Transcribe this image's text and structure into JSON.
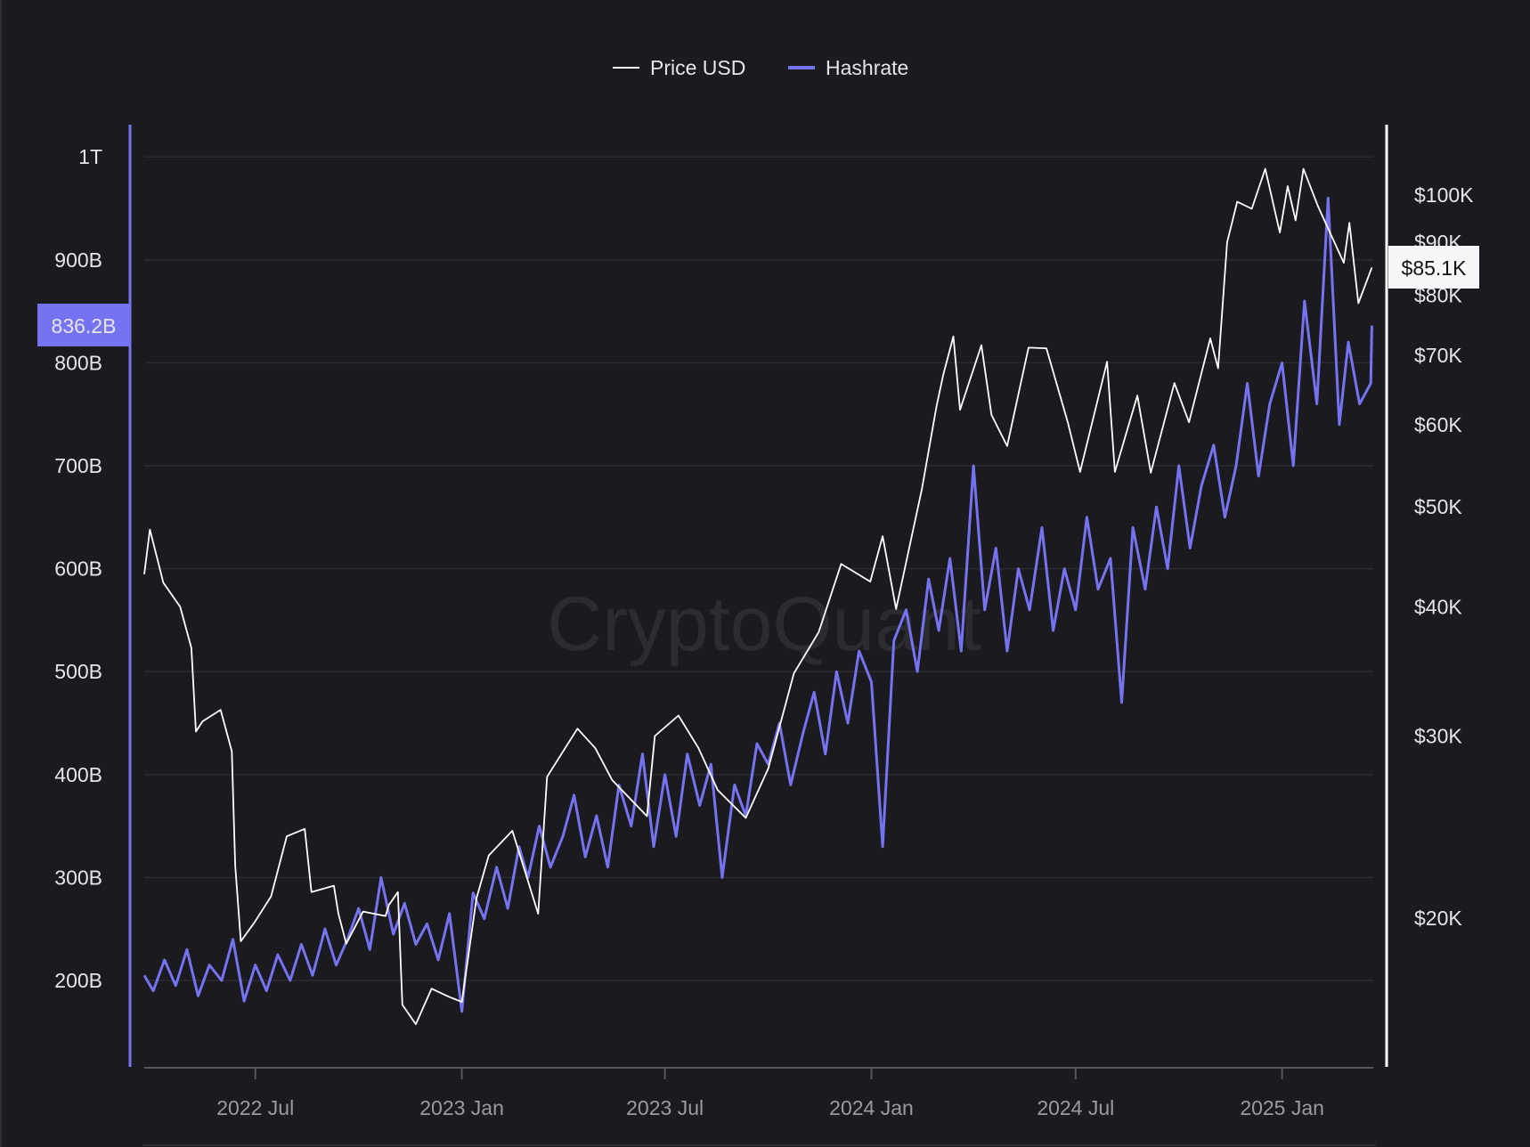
{
  "chart_data": {
    "type": "line",
    "title": "",
    "watermark": "CryptoQuant",
    "legend": {
      "placement": "top-center",
      "entries": [
        "Price USD",
        "Hashrate"
      ]
    },
    "grid": true,
    "colors": {
      "background": "#1b1a1f",
      "grid": "#2a2a30",
      "price": "#ffffff",
      "hashrate": "#7673f3",
      "text": "#e6e6ea"
    },
    "x_axis": {
      "type": "date",
      "range": [
        "2022-03-24",
        "2025-03-22"
      ],
      "ticks": [
        {
          "date": "2022-07-01",
          "label": "2022 Jul"
        },
        {
          "date": "2023-01-01",
          "label": "2023 Jan"
        },
        {
          "date": "2023-07-01",
          "label": "2023 Jul"
        },
        {
          "date": "2024-01-01",
          "label": "2024 Jan"
        },
        {
          "date": "2024-07-01",
          "label": "2024 Jul"
        },
        {
          "date": "2025-01-01",
          "label": "2025 Jan"
        }
      ]
    },
    "left_axis": {
      "series": "Hashrate",
      "scale": "linear",
      "ticks": [
        {
          "value": 200,
          "label": "200B"
        },
        {
          "value": 300,
          "label": "300B"
        },
        {
          "value": 400,
          "label": "400B"
        },
        {
          "value": 500,
          "label": "500B"
        },
        {
          "value": 600,
          "label": "600B"
        },
        {
          "value": 700,
          "label": "700B"
        },
        {
          "value": 800,
          "label": "800B"
        },
        {
          "value": 900,
          "label": "900B"
        },
        {
          "value": 1000,
          "label": "1T"
        }
      ],
      "current_value": 836.2,
      "current_label": "836.2B"
    },
    "right_axis": {
      "series": "Price USD",
      "scale": "log",
      "ticks": [
        {
          "value": 20000,
          "label": "$20K"
        },
        {
          "value": 30000,
          "label": "$30K"
        },
        {
          "value": 40000,
          "label": "$40K"
        },
        {
          "value": 50000,
          "label": "$50K"
        },
        {
          "value": 60000,
          "label": "$60K"
        },
        {
          "value": 70000,
          "label": "$70K"
        },
        {
          "value": 80000,
          "label": "$80K"
        },
        {
          "value": 90000,
          "label": "$90K"
        },
        {
          "value": 100000,
          "label": "$100K"
        }
      ],
      "current_value": 85100,
      "current_label": "$85.1K"
    },
    "series": [
      {
        "name": "Price USD",
        "axis": "right",
        "points": [
          [
            "2022-03-24",
            43000
          ],
          [
            "2022-03-29",
            47500
          ],
          [
            "2022-04-10",
            42200
          ],
          [
            "2022-04-25",
            40000
          ],
          [
            "2022-05-05",
            36500
          ],
          [
            "2022-05-09",
            30300
          ],
          [
            "2022-05-15",
            31000
          ],
          [
            "2022-05-31",
            31800
          ],
          [
            "2022-06-10",
            29000
          ],
          [
            "2022-06-13",
            22500
          ],
          [
            "2022-06-18",
            19000
          ],
          [
            "2022-06-30",
            19800
          ],
          [
            "2022-07-15",
            21000
          ],
          [
            "2022-07-29",
            24000
          ],
          [
            "2022-08-14",
            24400
          ],
          [
            "2022-08-20",
            21200
          ],
          [
            "2022-09-09",
            21500
          ],
          [
            "2022-09-13",
            20200
          ],
          [
            "2022-09-20",
            18900
          ],
          [
            "2022-10-05",
            20300
          ],
          [
            "2022-10-25",
            20100
          ],
          [
            "2022-10-28",
            20600
          ],
          [
            "2022-11-05",
            21200
          ],
          [
            "2022-11-09",
            16500
          ],
          [
            "2022-11-21",
            15800
          ],
          [
            "2022-12-05",
            17100
          ],
          [
            "2022-12-20",
            16800
          ],
          [
            "2023-01-01",
            16600
          ],
          [
            "2023-01-14",
            20900
          ],
          [
            "2023-01-25",
            23000
          ],
          [
            "2023-02-15",
            24300
          ],
          [
            "2023-03-10",
            20200
          ],
          [
            "2023-03-18",
            27400
          ],
          [
            "2023-04-14",
            30500
          ],
          [
            "2023-04-30",
            29200
          ],
          [
            "2023-05-15",
            27200
          ],
          [
            "2023-06-15",
            25100
          ],
          [
            "2023-06-22",
            30000
          ],
          [
            "2023-07-13",
            31400
          ],
          [
            "2023-07-31",
            29200
          ],
          [
            "2023-08-17",
            26600
          ],
          [
            "2023-09-11",
            25000
          ],
          [
            "2023-10-01",
            27900
          ],
          [
            "2023-10-24",
            34500
          ],
          [
            "2023-11-15",
            37800
          ],
          [
            "2023-12-05",
            44000
          ],
          [
            "2023-12-31",
            42300
          ],
          [
            "2024-01-11",
            46800
          ],
          [
            "2024-01-23",
            39800
          ],
          [
            "2024-02-15",
            52000
          ],
          [
            "2024-02-28",
            62500
          ],
          [
            "2024-03-05",
            67000
          ],
          [
            "2024-03-14",
            73000
          ],
          [
            "2024-03-20",
            62000
          ],
          [
            "2024-04-08",
            71600
          ],
          [
            "2024-04-17",
            61300
          ],
          [
            "2024-05-01",
            57200
          ],
          [
            "2024-05-20",
            71200
          ],
          [
            "2024-06-05",
            71100
          ],
          [
            "2024-06-24",
            60300
          ],
          [
            "2024-07-05",
            54000
          ],
          [
            "2024-07-29",
            69000
          ],
          [
            "2024-08-05",
            54000
          ],
          [
            "2024-08-25",
            64000
          ],
          [
            "2024-09-06",
            53900
          ],
          [
            "2024-09-27",
            65800
          ],
          [
            "2024-10-10",
            60300
          ],
          [
            "2024-10-29",
            72700
          ],
          [
            "2024-11-05",
            68000
          ],
          [
            "2024-11-13",
            90000
          ],
          [
            "2024-11-22",
            98500
          ],
          [
            "2024-12-05",
            97000
          ],
          [
            "2024-12-17",
            106000
          ],
          [
            "2024-12-30",
            92000
          ],
          [
            "2025-01-06",
            102000
          ],
          [
            "2025-01-13",
            94500
          ],
          [
            "2025-01-20",
            106000
          ],
          [
            "2025-02-02",
            97500
          ],
          [
            "2025-02-25",
            86000
          ],
          [
            "2025-03-02",
            94000
          ],
          [
            "2025-03-10",
            78600
          ],
          [
            "2025-03-22",
            85100
          ]
        ]
      },
      {
        "name": "Hashrate",
        "axis": "left",
        "unit": "B",
        "points": [
          [
            "2022-03-24",
            205
          ],
          [
            "2022-04-01",
            190
          ],
          [
            "2022-04-11",
            220
          ],
          [
            "2022-04-21",
            195
          ],
          [
            "2022-05-01",
            230
          ],
          [
            "2022-05-11",
            185
          ],
          [
            "2022-05-21",
            215
          ],
          [
            "2022-06-01",
            200
          ],
          [
            "2022-06-11",
            240
          ],
          [
            "2022-06-21",
            180
          ],
          [
            "2022-07-01",
            215
          ],
          [
            "2022-07-11",
            190
          ],
          [
            "2022-07-21",
            225
          ],
          [
            "2022-08-01",
            200
          ],
          [
            "2022-08-11",
            235
          ],
          [
            "2022-08-21",
            205
          ],
          [
            "2022-09-01",
            250
          ],
          [
            "2022-09-11",
            215
          ],
          [
            "2022-09-21",
            240
          ],
          [
            "2022-10-01",
            270
          ],
          [
            "2022-10-11",
            230
          ],
          [
            "2022-10-21",
            300
          ],
          [
            "2022-11-01",
            245
          ],
          [
            "2022-11-11",
            275
          ],
          [
            "2022-11-21",
            235
          ],
          [
            "2022-12-01",
            255
          ],
          [
            "2022-12-11",
            220
          ],
          [
            "2022-12-21",
            265
          ],
          [
            "2023-01-01",
            170
          ],
          [
            "2023-01-11",
            285
          ],
          [
            "2023-01-21",
            260
          ],
          [
            "2023-02-01",
            310
          ],
          [
            "2023-02-11",
            270
          ],
          [
            "2023-02-21",
            330
          ],
          [
            "2023-03-01",
            300
          ],
          [
            "2023-03-11",
            350
          ],
          [
            "2023-03-21",
            310
          ],
          [
            "2023-04-01",
            340
          ],
          [
            "2023-04-11",
            380
          ],
          [
            "2023-04-21",
            320
          ],
          [
            "2023-05-01",
            360
          ],
          [
            "2023-05-11",
            310
          ],
          [
            "2023-05-21",
            390
          ],
          [
            "2023-06-01",
            350
          ],
          [
            "2023-06-11",
            420
          ],
          [
            "2023-06-21",
            330
          ],
          [
            "2023-07-01",
            400
          ],
          [
            "2023-07-11",
            340
          ],
          [
            "2023-07-21",
            420
          ],
          [
            "2023-08-01",
            370
          ],
          [
            "2023-08-11",
            410
          ],
          [
            "2023-08-21",
            300
          ],
          [
            "2023-09-01",
            390
          ],
          [
            "2023-09-11",
            360
          ],
          [
            "2023-09-21",
            430
          ],
          [
            "2023-10-01",
            410
          ],
          [
            "2023-10-11",
            450
          ],
          [
            "2023-10-21",
            390
          ],
          [
            "2023-11-01",
            440
          ],
          [
            "2023-11-11",
            480
          ],
          [
            "2023-11-21",
            420
          ],
          [
            "2023-12-01",
            500
          ],
          [
            "2023-12-11",
            450
          ],
          [
            "2023-12-21",
            520
          ],
          [
            "2024-01-01",
            490
          ],
          [
            "2024-01-11",
            330
          ],
          [
            "2024-01-21",
            530
          ],
          [
            "2024-02-01",
            560
          ],
          [
            "2024-02-11",
            500
          ],
          [
            "2024-02-21",
            590
          ],
          [
            "2024-03-01",
            540
          ],
          [
            "2024-03-11",
            610
          ],
          [
            "2024-03-21",
            520
          ],
          [
            "2024-04-01",
            700
          ],
          [
            "2024-04-11",
            560
          ],
          [
            "2024-04-21",
            620
          ],
          [
            "2024-05-01",
            520
          ],
          [
            "2024-05-11",
            600
          ],
          [
            "2024-05-21",
            560
          ],
          [
            "2024-06-01",
            640
          ],
          [
            "2024-06-11",
            540
          ],
          [
            "2024-06-21",
            600
          ],
          [
            "2024-07-01",
            560
          ],
          [
            "2024-07-11",
            650
          ],
          [
            "2024-07-21",
            580
          ],
          [
            "2024-08-01",
            610
          ],
          [
            "2024-08-11",
            470
          ],
          [
            "2024-08-21",
            640
          ],
          [
            "2024-09-01",
            580
          ],
          [
            "2024-09-11",
            660
          ],
          [
            "2024-09-21",
            600
          ],
          [
            "2024-10-01",
            700
          ],
          [
            "2024-10-11",
            620
          ],
          [
            "2024-10-21",
            680
          ],
          [
            "2024-11-01",
            720
          ],
          [
            "2024-11-11",
            650
          ],
          [
            "2024-11-21",
            700
          ],
          [
            "2024-12-01",
            780
          ],
          [
            "2024-12-11",
            690
          ],
          [
            "2024-12-21",
            760
          ],
          [
            "2025-01-01",
            800
          ],
          [
            "2025-01-11",
            700
          ],
          [
            "2025-01-21",
            860
          ],
          [
            "2025-02-01",
            760
          ],
          [
            "2025-02-11",
            960
          ],
          [
            "2025-02-21",
            740
          ],
          [
            "2025-03-01",
            820
          ],
          [
            "2025-03-11",
            760
          ],
          [
            "2025-03-21",
            780
          ],
          [
            "2025-03-22",
            836.2
          ]
        ]
      }
    ]
  }
}
